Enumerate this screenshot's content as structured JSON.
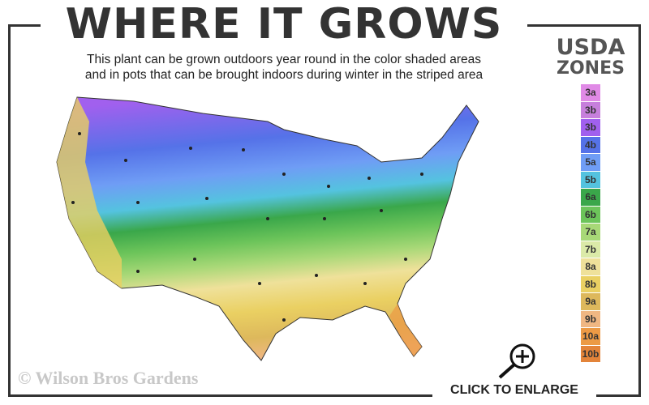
{
  "header": {
    "title": "WHERE IT GROWS",
    "subtitle_line1": "This plant can be grown outdoors year round in the color shaded areas",
    "subtitle_line2": "and in pots that can be brought indoors during winter in the striped area"
  },
  "legend": {
    "title_line1": "USDA",
    "title_line2": "ZONES",
    "zones": [
      {
        "label": "3a",
        "color": "#e08ae6"
      },
      {
        "label": "3b",
        "color": "#c77fdc"
      },
      {
        "label": "3b",
        "color": "#a160ee"
      },
      {
        "label": "4b",
        "color": "#5572e8"
      },
      {
        "label": "5a",
        "color": "#6f9df5"
      },
      {
        "label": "5b",
        "color": "#54c3df"
      },
      {
        "label": "6a",
        "color": "#3aa74a"
      },
      {
        "label": "6b",
        "color": "#6cc45a"
      },
      {
        "label": "7a",
        "color": "#a8d877"
      },
      {
        "label": "7b",
        "color": "#dbeaa8"
      },
      {
        "label": "8a",
        "color": "#efe19a"
      },
      {
        "label": "8b",
        "color": "#ead062"
      },
      {
        "label": "9a",
        "color": "#ddb85c"
      },
      {
        "label": "9b",
        "color": "#f0b783"
      },
      {
        "label": "10a",
        "color": "#ec9a45"
      },
      {
        "label": "10b",
        "color": "#e3843a"
      }
    ]
  },
  "map": {
    "icon": "usda-hardiness-zone-map"
  },
  "footer": {
    "copyright": "© Wilson Bros Gardens",
    "enlarge_label": "CLICK TO ENLARGE",
    "enlarge_icon": "zoom-in-magnifier-icon"
  }
}
